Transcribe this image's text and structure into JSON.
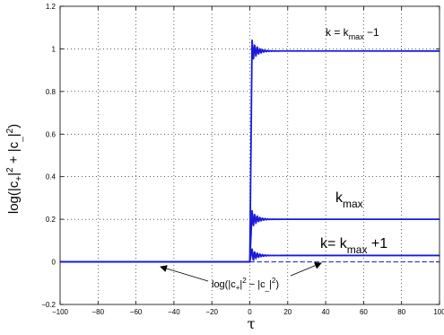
{
  "chart_data": {
    "type": "line",
    "xlabel": "τ",
    "ylabel": {
      "p1": "log(|c",
      "s1": "+",
      "p2": "|",
      "e1": "2",
      "p3": " + |c",
      "s2": "_",
      "p4": "|",
      "e2": "2",
      "p5": ")"
    },
    "xlim": [
      -100,
      100
    ],
    "ylim": [
      -0.2,
      1.2
    ],
    "xticks": [
      "−100",
      "−80",
      "−60",
      "−40",
      "−20",
      "0",
      "20",
      "40",
      "60",
      "80",
      "100"
    ],
    "xtick_values": [
      -100,
      -80,
      -60,
      -40,
      -20,
      0,
      20,
      40,
      60,
      80,
      100
    ],
    "yticks": [
      "−0.2",
      "0",
      "0.2",
      "0.4",
      "0.6",
      "0.8",
      "1",
      "1.2"
    ],
    "ytick_values": [
      -0.2,
      0,
      0.2,
      0.4,
      0.6,
      0.8,
      1.0,
      1.2
    ],
    "grid": true,
    "colors": {
      "series": "#1a1adb",
      "dashed": "#1a1adb"
    },
    "series": [
      {
        "key": "kmax_minus_1",
        "step_at": 0,
        "before": 0,
        "after": 0.99,
        "overshoot": 1.04
      },
      {
        "key": "kmax",
        "step_at": 0,
        "before": 0,
        "after": 0.2,
        "overshoot": 0.24
      },
      {
        "key": "kmax_plus_1",
        "step_at": 0,
        "before": 0,
        "after": 0.03,
        "overshoot": 0.06
      },
      {
        "key": "difference",
        "style": "dashed",
        "x": [
          0,
          100
        ],
        "y": [
          0,
          0
        ]
      }
    ],
    "annotations": {
      "kmax_minus_1": {
        "p1": "k = k",
        "sub": "max",
        "p2": " −1"
      },
      "kmax": {
        "p1": "k",
        "sub": "max"
      },
      "kmax_plus_1": {
        "p1": "k= k",
        "sub": "max",
        "p2": " +1"
      },
      "difference": {
        "p1": "log(|c",
        "s1": "+",
        "p2": "|",
        "e1": "2",
        "p3": " − |c",
        "s2": "_",
        "p4": "|",
        "e2": "2",
        "p5": ")"
      }
    }
  }
}
